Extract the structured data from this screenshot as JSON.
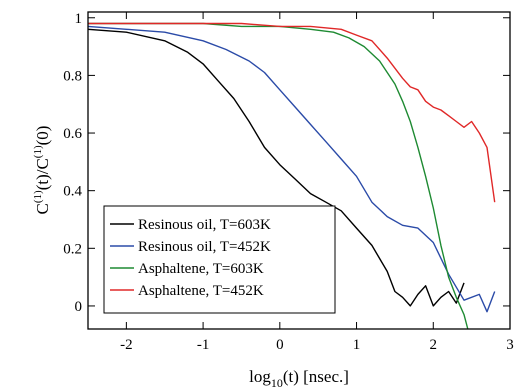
{
  "chart_data": {
    "type": "line",
    "xlabel": {
      "main": "log",
      "sub": "10",
      "rest": "(t)   [nsec.]"
    },
    "ylabel": {
      "c1": "C",
      "s1": "(1)",
      "mid": "(t)/C",
      "s2": "(1)",
      "end": "(0)"
    },
    "xlim": [
      -2.5,
      3.0
    ],
    "ylim": [
      -0.08,
      1.02
    ],
    "x_ticks": [
      -2,
      -1,
      0,
      1,
      2,
      3
    ],
    "y_ticks": [
      0,
      0.2,
      0.4,
      0.6,
      0.8,
      1
    ],
    "x_tick_labels": [
      "-2",
      "-1",
      "0",
      "1",
      "2",
      "3"
    ],
    "y_tick_labels": [
      "0",
      "0.2",
      "0.4",
      "0.6",
      "0.8",
      "1"
    ],
    "grid": false,
    "legend_position": "bottom-left",
    "series": [
      {
        "name": "Resinous oil, T=603K",
        "color": "#000000",
        "x": [
          -2.5,
          -2.0,
          -1.5,
          -1.2,
          -1.0,
          -0.8,
          -0.6,
          -0.4,
          -0.2,
          0.0,
          0.2,
          0.4,
          0.6,
          0.8,
          1.0,
          1.2,
          1.4,
          1.5,
          1.6,
          1.7,
          1.8,
          1.9,
          2.0,
          2.1,
          2.2,
          2.3,
          2.4
        ],
        "y": [
          0.96,
          0.95,
          0.92,
          0.88,
          0.84,
          0.78,
          0.72,
          0.64,
          0.55,
          0.49,
          0.44,
          0.39,
          0.36,
          0.33,
          0.27,
          0.21,
          0.12,
          0.05,
          0.03,
          0.0,
          0.04,
          0.07,
          0.0,
          0.03,
          0.05,
          0.01,
          0.08
        ]
      },
      {
        "name": "Resinous oil, T=452K",
        "color": "#2b4ba8",
        "x": [
          -2.5,
          -2.0,
          -1.5,
          -1.0,
          -0.7,
          -0.4,
          -0.2,
          0.0,
          0.2,
          0.4,
          0.6,
          0.8,
          1.0,
          1.2,
          1.4,
          1.6,
          1.8,
          2.0,
          2.2,
          2.4,
          2.6,
          2.7,
          2.8
        ],
        "y": [
          0.97,
          0.96,
          0.95,
          0.92,
          0.89,
          0.85,
          0.81,
          0.75,
          0.69,
          0.63,
          0.57,
          0.51,
          0.45,
          0.36,
          0.31,
          0.28,
          0.27,
          0.22,
          0.11,
          0.02,
          0.04,
          -0.02,
          0.05
        ]
      },
      {
        "name": "Asphaltene, T=603K",
        "color": "#1e8a32",
        "x": [
          -2.5,
          -2.0,
          -1.5,
          -1.0,
          -0.5,
          0.0,
          0.4,
          0.7,
          0.9,
          1.1,
          1.3,
          1.5,
          1.6,
          1.7,
          1.8,
          1.9,
          2.0,
          2.1,
          2.2,
          2.3,
          2.4,
          2.45
        ],
        "y": [
          0.98,
          0.98,
          0.98,
          0.98,
          0.97,
          0.97,
          0.96,
          0.95,
          0.93,
          0.9,
          0.85,
          0.77,
          0.71,
          0.64,
          0.55,
          0.45,
          0.34,
          0.21,
          0.1,
          0.03,
          -0.03,
          -0.08
        ]
      },
      {
        "name": "Asphaltene, T=452K",
        "color": "#e02828",
        "x": [
          -2.5,
          -2.0,
          -1.5,
          -1.0,
          -0.5,
          0.0,
          0.4,
          0.8,
          1.0,
          1.2,
          1.4,
          1.6,
          1.7,
          1.8,
          1.9,
          2.0,
          2.1,
          2.2,
          2.3,
          2.4,
          2.5,
          2.6,
          2.7,
          2.8
        ],
        "y": [
          0.98,
          0.98,
          0.98,
          0.98,
          0.98,
          0.97,
          0.97,
          0.96,
          0.94,
          0.92,
          0.86,
          0.79,
          0.76,
          0.75,
          0.71,
          0.69,
          0.68,
          0.66,
          0.64,
          0.62,
          0.64,
          0.6,
          0.55,
          0.36
        ]
      }
    ]
  }
}
